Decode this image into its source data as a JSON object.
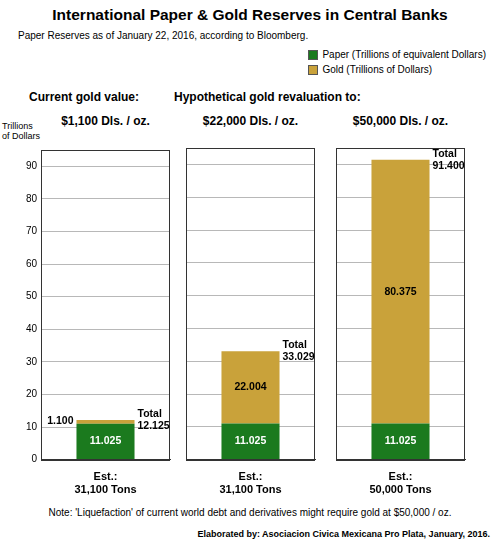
{
  "header": {
    "title": "International Paper & Gold Reserves in Central Banks",
    "subtitle": "Paper Reserves as of January 22, 2016, according to Bloomberg."
  },
  "legend": "upper right",
  "footer": {
    "note": "Note: 'Liquefaction' of current world debt and derivatives might require gold at $50,000 / oz.",
    "credit": "Elaborated by: Asociacion Civica Mexicana Pro Plata, January, 2016."
  },
  "chart_data": [
    {
      "type": "bar",
      "stacked": true,
      "data_labels": true,
      "grid": true,
      "group": "Current gold value:",
      "title": "$1,100 Dls. / oz.",
      "y_label": "Trillions of Dollars",
      "categories": [
        [
          "Est.:",
          "31,100 Tons"
        ]
      ],
      "series": [
        {
          "name": "Paper (Trillions of equivalent Dollars)",
          "color": "#1b7a1e",
          "values": [
            11.025
          ]
        },
        {
          "name": "Gold (Trillions of Dollars)",
          "color": "#c9a23a",
          "values": [
            1.1
          ],
          "value_labels": [
            "1.100"
          ]
        }
      ],
      "total": {
        "name": "Total",
        "values": [
          12.125
        ]
      },
      "ylim": [
        0,
        95
      ],
      "yticks": [
        0,
        10,
        20,
        30,
        40,
        50,
        60,
        70,
        80,
        90
      ]
    },
    {
      "type": "bar",
      "stacked": true,
      "data_labels": true,
      "grid": true,
      "tick_labels": "x",
      "group": "Hypothetical gold revaluation to:",
      "title": "$22,000 Dls. / oz.",
      "categories": [
        [
          "Est.:",
          "31,100 Tons"
        ]
      ],
      "series": [
        {
          "name": "Paper (Trillions of equivalent Dollars)",
          "color": "#1b7a1e",
          "values": [
            11.025
          ]
        },
        {
          "name": "Gold (Trillions of Dollars)",
          "color": "#c9a23a",
          "values": [
            22.004
          ]
        }
      ],
      "total": {
        "name": "Total",
        "values": [
          33.029
        ]
      },
      "ylim": [
        0,
        95
      ],
      "yticks": [
        0,
        10,
        20,
        30,
        40,
        50,
        60,
        70,
        80,
        90
      ]
    },
    {
      "type": "bar",
      "stacked": true,
      "data_labels": true,
      "grid": true,
      "tick_labels": "x",
      "group": "Hypothetical gold revaluation to:",
      "title": "$50,000 Dls. / oz.",
      "categories": [
        [
          "Est.:",
          "50,000 Tons"
        ]
      ],
      "series": [
        {
          "name": "Paper (Trillions of equivalent Dollars)",
          "color": "#1b7a1e",
          "values": [
            11.025
          ]
        },
        {
          "name": "Gold (Trillions of Dollars)",
          "color": "#c9a23a",
          "values": [
            80.375
          ]
        }
      ],
      "total": {
        "name": "Total",
        "values": [
          91.4
        ],
        "value_labels": [
          "91.400"
        ]
      },
      "ylim": [
        0,
        95
      ],
      "yticks": [
        0,
        10,
        20,
        30,
        40,
        50,
        60,
        70,
        80,
        90
      ]
    }
  ]
}
